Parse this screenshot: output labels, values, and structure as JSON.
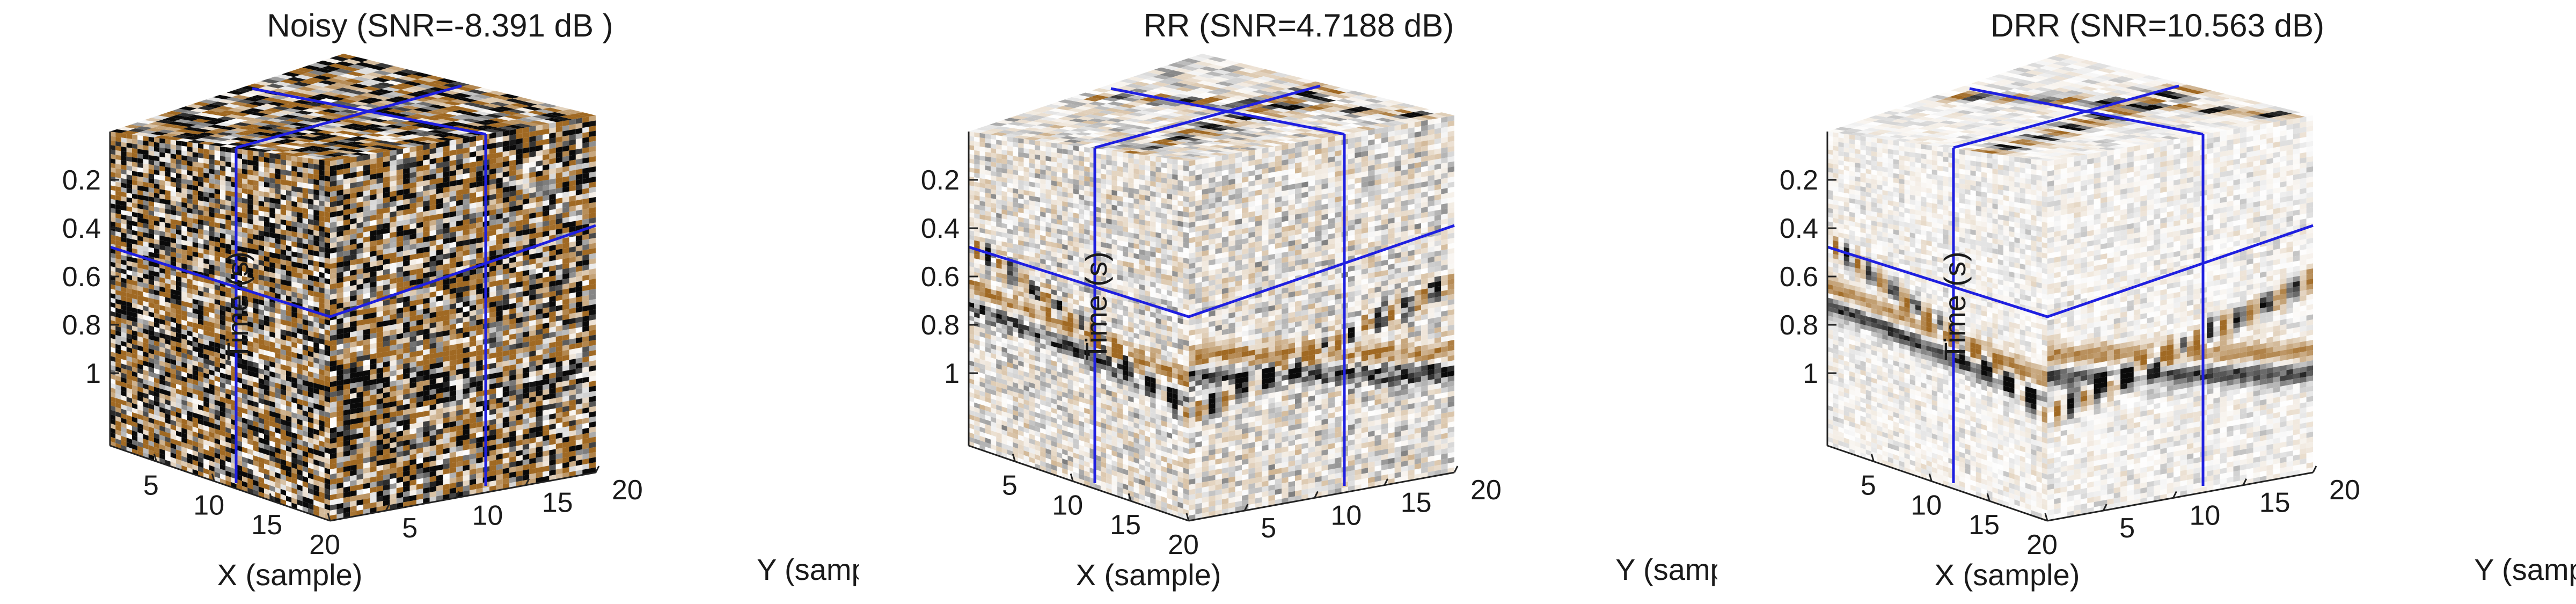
{
  "chart_data": [
    {
      "type": "volume",
      "title": "Noisy (SNR=-8.391 dB )",
      "xlabel": "X (sample)",
      "ylabel": "Y (sample)",
      "zlabel": "Time (s)",
      "x_ticks": [
        "5",
        "10",
        "15",
        "20"
      ],
      "y_ticks": [
        "5",
        "10",
        "15",
        "20"
      ],
      "z_ticks": [
        "0.2",
        "0.4",
        "0.6",
        "0.8",
        "1"
      ],
      "xlim": [
        1,
        20
      ],
      "ylim": [
        1,
        20
      ],
      "zlim": [
        0,
        1.3
      ],
      "noise_level": 1.0,
      "colormap": "seismic-brown",
      "slice_line_color": "#1f1fe0"
    },
    {
      "type": "volume",
      "title": "RR (SNR=4.7188 dB)",
      "xlabel": "X (sample)",
      "ylabel": "Y (sample)",
      "zlabel": "Time (s)",
      "x_ticks": [
        "5",
        "10",
        "15",
        "20"
      ],
      "y_ticks": [
        "5",
        "10",
        "15",
        "20"
      ],
      "z_ticks": [
        "0.2",
        "0.4",
        "0.6",
        "0.8",
        "1"
      ],
      "xlim": [
        1,
        20
      ],
      "ylim": [
        1,
        20
      ],
      "zlim": [
        0,
        1.3
      ],
      "noise_level": 0.25,
      "colormap": "seismic-brown",
      "slice_line_color": "#1f1fe0"
    },
    {
      "type": "volume",
      "title": "DRR (SNR=10.563 dB)",
      "xlabel": "X (sample)",
      "ylabel": "Y (sample)",
      "zlabel": "Time (s)",
      "x_ticks": [
        "5",
        "10",
        "15",
        "20"
      ],
      "y_ticks": [
        "5",
        "10",
        "15",
        "20"
      ],
      "z_ticks": [
        "0.2",
        "0.4",
        "0.6",
        "0.8",
        "1"
      ],
      "xlim": [
        1,
        20
      ],
      "ylim": [
        1,
        20
      ],
      "zlim": [
        0,
        1.3
      ],
      "noise_level": 0.08,
      "colormap": "seismic-brown",
      "slice_line_color": "#1f1fe0"
    }
  ]
}
